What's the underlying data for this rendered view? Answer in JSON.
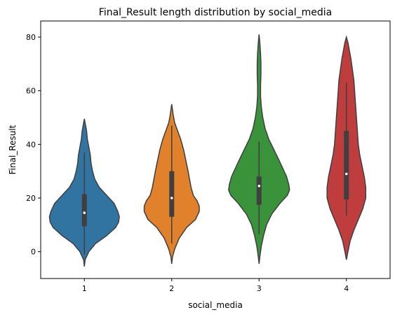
{
  "chart_data": {
    "type": "violin",
    "title": "Final_Result length distribution by social_media",
    "xlabel": "social_media",
    "ylabel": "Final_Result",
    "categories": [
      "1",
      "2",
      "3",
      "4"
    ],
    "ylim": [
      -10,
      86
    ],
    "yticks": [
      0,
      20,
      40,
      60,
      80
    ],
    "grid": false,
    "legend": "none",
    "colors": [
      "#3274a1",
      "#e1812c",
      "#3a923a",
      "#c03d3e"
    ],
    "series": [
      {
        "category": "1",
        "min": -5.5,
        "max": 49.5,
        "whisker_low": -1,
        "q1": 9.5,
        "median": 14.5,
        "q3": 21.5,
        "whisker_high": 37,
        "profile": [
          [
            -5.5,
            0
          ],
          [
            -3,
            1
          ],
          [
            0,
            6
          ],
          [
            3,
            15
          ],
          [
            6,
            30
          ],
          [
            9,
            42
          ],
          [
            11,
            46
          ],
          [
            13,
            47
          ],
          [
            15,
            45
          ],
          [
            18,
            40
          ],
          [
            21,
            30
          ],
          [
            24,
            20
          ],
          [
            27,
            14
          ],
          [
            30,
            11
          ],
          [
            33,
            9
          ],
          [
            36,
            8
          ],
          [
            39,
            6
          ],
          [
            42,
            4
          ],
          [
            45,
            3
          ],
          [
            48,
            1
          ],
          [
            49.5,
            0
          ]
        ]
      },
      {
        "category": "2",
        "min": -4.5,
        "max": 55,
        "whisker_low": 3,
        "q1": 13,
        "median": 20,
        "q3": 30,
        "whisker_high": 47,
        "profile": [
          [
            -4.5,
            0
          ],
          [
            -2,
            1
          ],
          [
            1,
            4
          ],
          [
            5,
            10
          ],
          [
            9,
            20
          ],
          [
            12,
            32
          ],
          [
            15,
            37
          ],
          [
            17,
            37
          ],
          [
            19,
            34
          ],
          [
            21,
            29
          ],
          [
            24,
            26
          ],
          [
            27,
            24
          ],
          [
            30,
            22
          ],
          [
            34,
            19
          ],
          [
            38,
            16
          ],
          [
            42,
            12
          ],
          [
            45,
            8
          ],
          [
            48,
            4
          ],
          [
            51,
            2
          ],
          [
            53,
            1
          ],
          [
            55,
            0
          ]
        ]
      },
      {
        "category": "3",
        "min": -4.5,
        "max": 81,
        "whisker_low": 6.5,
        "q1": 17.5,
        "median": 24.5,
        "q3": 28,
        "whisker_high": 41,
        "profile": [
          [
            -4.5,
            0
          ],
          [
            -2,
            1
          ],
          [
            2,
            3
          ],
          [
            6,
            6
          ],
          [
            10,
            10
          ],
          [
            14,
            17
          ],
          [
            18,
            28
          ],
          [
            21,
            38
          ],
          [
            23,
            41
          ],
          [
            25,
            40
          ],
          [
            28,
            37
          ],
          [
            31,
            32
          ],
          [
            34,
            27
          ],
          [
            38,
            20
          ],
          [
            42,
            13
          ],
          [
            46,
            8
          ],
          [
            50,
            5
          ],
          [
            54,
            3
          ],
          [
            58,
            2
          ],
          [
            62,
            2
          ],
          [
            66,
            2.5
          ],
          [
            70,
            2.5
          ],
          [
            74,
            2
          ],
          [
            78,
            1
          ],
          [
            81,
            0
          ]
        ]
      },
      {
        "category": "4",
        "min": -3,
        "max": 80,
        "whisker_low": 13.5,
        "q1": 19.5,
        "median": 29,
        "q3": 45,
        "whisker_high": 63,
        "profile": [
          [
            -3,
            0
          ],
          [
            0,
            2
          ],
          [
            4,
            5
          ],
          [
            8,
            10
          ],
          [
            12,
            16
          ],
          [
            16,
            22
          ],
          [
            20,
            26
          ],
          [
            24,
            26
          ],
          [
            28,
            24
          ],
          [
            32,
            21
          ],
          [
            36,
            18
          ],
          [
            40,
            16
          ],
          [
            44,
            15
          ],
          [
            48,
            14
          ],
          [
            52,
            13
          ],
          [
            56,
            12
          ],
          [
            60,
            11
          ],
          [
            64,
            10
          ],
          [
            68,
            8
          ],
          [
            72,
            6
          ],
          [
            75,
            4
          ],
          [
            78,
            2
          ],
          [
            80,
            0
          ]
        ]
      }
    ]
  }
}
